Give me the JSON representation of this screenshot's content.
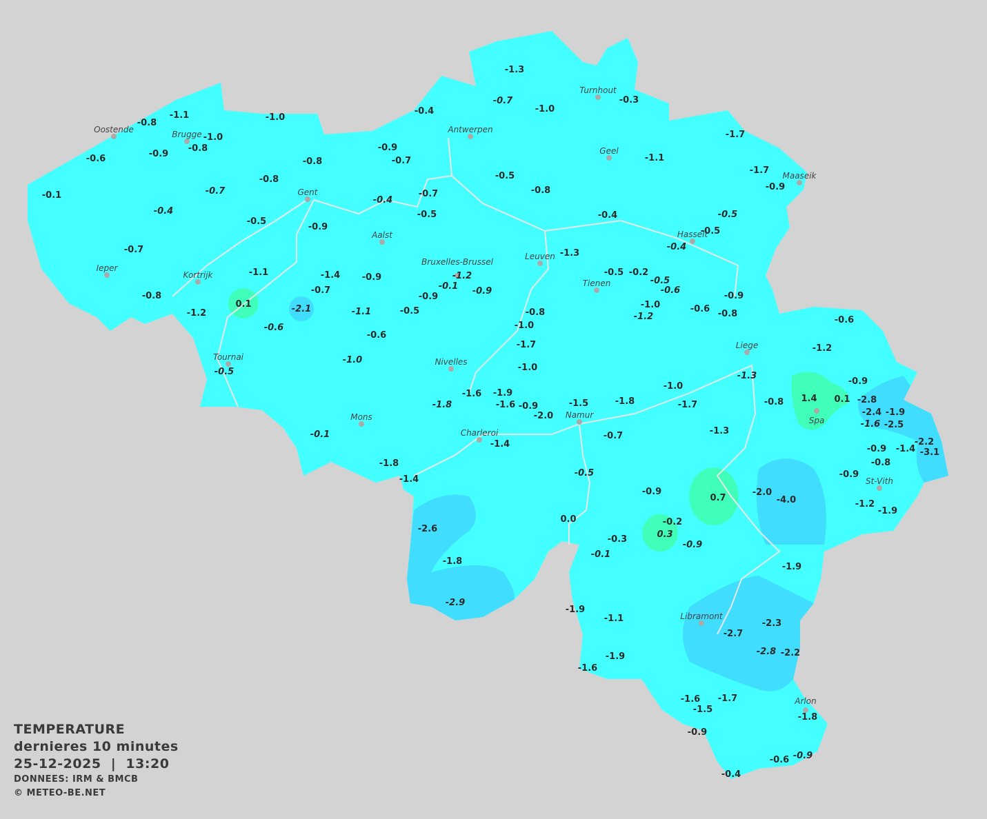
{
  "legend": {
    "title": "TEMPERATURE",
    "subtitle": "dernieres 10 minutes",
    "datetime": "25-12-2025  |  13:20",
    "source": "DONNEES: IRM & BMCB",
    "copyright": "© METEO-BE.NET"
  },
  "colors": {
    "background": "#d3d3d3",
    "base": "#44ffff",
    "cold": "#40ddff",
    "colder": "#3fc8f5",
    "mild": "#40ffbb",
    "borders": "#e6e6e6"
  },
  "cities": [
    "Oostende",
    "Brugge",
    "Antwerpen",
    "Turnhout",
    "Geel",
    "Maaseik",
    "Gent",
    "Aalst",
    "Hasselt",
    "Leuven",
    "Ieper",
    "Kortrijk",
    "Bruxelles-Brussel",
    "Tienen",
    "Liege",
    "Tournai",
    "Nivelles",
    "Spa",
    "Mons",
    "Namur",
    "Charleroi",
    "St-Vith",
    "Libramont",
    "Arlon"
  ],
  "readings": [
    {
      "v": "-1.3"
    },
    {
      "v": "-0.7",
      "i": true
    },
    {
      "v": "-1.0"
    },
    {
      "v": "-0.3"
    },
    {
      "v": "-0.4"
    },
    {
      "v": "-1.1"
    },
    {
      "v": "-0.8"
    },
    {
      "v": "-1.0"
    },
    {
      "v": "-1.0"
    },
    {
      "v": "-0.8"
    },
    {
      "v": "-0.6"
    },
    {
      "v": "-0.9"
    },
    {
      "v": "-0.9"
    },
    {
      "v": "-0.7"
    },
    {
      "v": "-0.8"
    },
    {
      "v": "-1.7"
    },
    {
      "v": "-1.1"
    },
    {
      "v": "-1.7"
    },
    {
      "v": "-0.9"
    },
    {
      "v": "-0.5"
    },
    {
      "v": "-0.8"
    },
    {
      "v": "-0.1"
    },
    {
      "v": "-0.7",
      "i": true
    },
    {
      "v": "-0.8"
    },
    {
      "v": "-0.7"
    },
    {
      "v": "-0.4",
      "i": true
    },
    {
      "v": "-0.5"
    },
    {
      "v": "-0.4",
      "i": true
    },
    {
      "v": "-0.5"
    },
    {
      "v": "-0.9"
    },
    {
      "v": "-0.4"
    },
    {
      "v": "-0.5",
      "i": true
    },
    {
      "v": "-0.5"
    },
    {
      "v": "-0.4",
      "i": true
    },
    {
      "v": "-0.7"
    },
    {
      "v": "-1.3"
    },
    {
      "v": "-1.1"
    },
    {
      "v": "-1.4"
    },
    {
      "v": "-0.9"
    },
    {
      "v": "-1.2",
      "i": true
    },
    {
      "v": "-0.1",
      "i": true
    },
    {
      "v": "-0.9",
      "i": true
    },
    {
      "v": "-0.5"
    },
    {
      "v": "-0.2"
    },
    {
      "v": "-0.5",
      "i": true
    },
    {
      "v": "-0.6",
      "i": true
    },
    {
      "v": "-0.7"
    },
    {
      "v": "-0.9"
    },
    {
      "v": "-0.8"
    },
    {
      "v": "0.1"
    },
    {
      "v": "-2.1",
      "i": true
    },
    {
      "v": "-1.2"
    },
    {
      "v": "-1.1",
      "i": true
    },
    {
      "v": "-0.5"
    },
    {
      "v": "-0.8"
    },
    {
      "v": "-1.0"
    },
    {
      "v": "-1.2",
      "i": true
    },
    {
      "v": "-0.6"
    },
    {
      "v": "-0.8"
    },
    {
      "v": "-0.9"
    },
    {
      "v": "-0.6",
      "i": true
    },
    {
      "v": "-1.0"
    },
    {
      "v": "-0.6"
    },
    {
      "v": "-1.7"
    },
    {
      "v": "-0.6"
    },
    {
      "v": "-1.2"
    },
    {
      "v": "-1.0",
      "i": true
    },
    {
      "v": "-0.5",
      "i": true
    },
    {
      "v": "-1.0"
    },
    {
      "v": "-1.3",
      "i": true
    },
    {
      "v": "-0.9"
    },
    {
      "v": "-1.9"
    },
    {
      "v": "-1.6"
    },
    {
      "v": "-1.0"
    },
    {
      "v": "-1.8",
      "i": true
    },
    {
      "v": "-1.6"
    },
    {
      "v": "-0.9"
    },
    {
      "v": "-1.5"
    },
    {
      "v": "-1.8"
    },
    {
      "v": "-1.7"
    },
    {
      "v": "-0.8"
    },
    {
      "v": "1.4"
    },
    {
      "v": "0.1"
    },
    {
      "v": "-2.8"
    },
    {
      "v": "-2.4"
    },
    {
      "v": "-1.9"
    },
    {
      "v": "-1.6",
      "i": true
    },
    {
      "v": "-2.5"
    },
    {
      "v": "-2.0"
    },
    {
      "v": "-0.1",
      "i": true
    },
    {
      "v": "-0.7"
    },
    {
      "v": "-1.3"
    },
    {
      "v": "-1.4"
    },
    {
      "v": "-2.2"
    },
    {
      "v": "-0.9"
    },
    {
      "v": "-1.4"
    },
    {
      "v": "-3.1"
    },
    {
      "v": "-0.8"
    },
    {
      "v": "-1.8"
    },
    {
      "v": "-1.4"
    },
    {
      "v": "-0.5",
      "i": true
    },
    {
      "v": "-0.9"
    },
    {
      "v": "-0.9"
    },
    {
      "v": "0.7"
    },
    {
      "v": "-2.0"
    },
    {
      "v": "-4.0"
    },
    {
      "v": "-1.2"
    },
    {
      "v": "-1.9"
    },
    {
      "v": "0.0"
    },
    {
      "v": "-0.2"
    },
    {
      "v": "0.3",
      "i": true
    },
    {
      "v": "-2.6"
    },
    {
      "v": "-0.3"
    },
    {
      "v": "-0.9",
      "i": true
    },
    {
      "v": "-0.1",
      "i": true
    },
    {
      "v": "-1.8"
    },
    {
      "v": "-1.9"
    },
    {
      "v": "-2.9",
      "i": true
    },
    {
      "v": "-1.9"
    },
    {
      "v": "-1.1"
    },
    {
      "v": "-2.3"
    },
    {
      "v": "-2.7"
    },
    {
      "v": "-2.8",
      "i": true
    },
    {
      "v": "-2.2"
    },
    {
      "v": "-1.9"
    },
    {
      "v": "-1.6"
    },
    {
      "v": "-1.6"
    },
    {
      "v": "-1.7"
    },
    {
      "v": "-1.5"
    },
    {
      "v": "-1.8"
    },
    {
      "v": "-0.9"
    },
    {
      "v": "-0.6"
    },
    {
      "v": "-0.9",
      "i": true
    },
    {
      "v": "-0.4"
    }
  ]
}
